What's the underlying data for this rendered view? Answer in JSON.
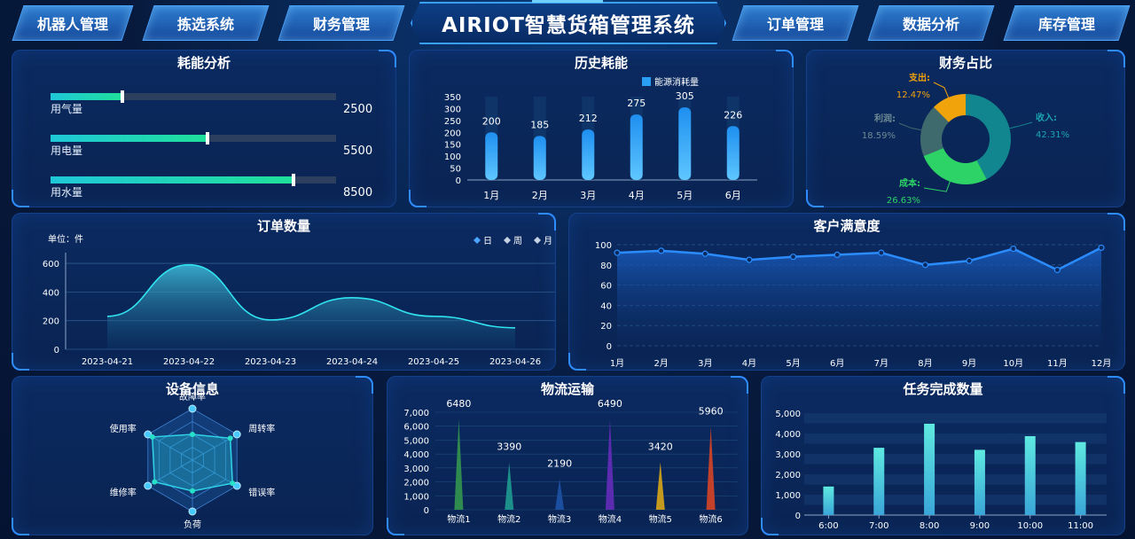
{
  "app": {
    "title": "AIRIOT智慧货箱管理系统"
  },
  "nav": {
    "left": [
      "机器人管理",
      "拣选系统",
      "财务管理"
    ],
    "right": [
      "订单管理",
      "数据分析",
      "库存管理"
    ]
  },
  "energy": {
    "title": "耗能分析",
    "items": [
      {
        "label": "用气量",
        "value": "2500",
        "fraction": 0.25
      },
      {
        "label": "用电量",
        "value": "5500",
        "fraction": 0.55
      },
      {
        "label": "用水量",
        "value": "8500",
        "fraction": 0.85
      }
    ]
  },
  "history": {
    "title": "历史耗能",
    "chart_data": {
      "type": "bar",
      "categories": [
        "1月",
        "2月",
        "3月",
        "4月",
        "5月",
        "6月"
      ],
      "series": [
        {
          "name": "能源消耗量",
          "values": [
            200,
            185,
            212,
            275,
            305,
            226
          ]
        }
      ],
      "yticks": [
        "0",
        "50",
        "100",
        "150",
        "200",
        "250",
        "300",
        "350"
      ],
      "ylim": [
        0,
        350
      ]
    }
  },
  "finance": {
    "title": "财务占比",
    "chart_data": {
      "type": "pie",
      "slices": [
        {
          "name": "收入:",
          "value": "42.31%",
          "pct": 42.31,
          "color": "#12868f"
        },
        {
          "name": "成本:",
          "value": "26.63%",
          "pct": 26.63,
          "color": "#2ed367"
        },
        {
          "name": "利润:",
          "value": "18.59%",
          "pct": 18.59,
          "color": "#3f6a6d"
        },
        {
          "name": "支出:",
          "value": "12.47%",
          "pct": 12.47,
          "color": "#f1a30c"
        }
      ]
    }
  },
  "orders": {
    "title": "订单数量",
    "unit": "单位：件",
    "legend": [
      "日",
      "周",
      "月"
    ],
    "chart_data": {
      "type": "area",
      "x": [
        "2023-04-21",
        "2023-04-22",
        "2023-04-23",
        "2023-04-24",
        "2023-04-25",
        "2023-04-26"
      ],
      "values": [
        230,
        590,
        205,
        360,
        230,
        150
      ],
      "yticks": [
        "0",
        "200",
        "400",
        "600"
      ],
      "ylim": [
        0,
        650
      ]
    }
  },
  "satisfaction": {
    "title": "客户满意度",
    "chart_data": {
      "type": "line",
      "x": [
        "1月",
        "2月",
        "3月",
        "4月",
        "5月",
        "6月",
        "7月",
        "8月",
        "9月",
        "10月",
        "11月",
        "12月"
      ],
      "values": [
        92,
        94,
        91,
        85,
        88,
        90,
        92,
        80,
        84,
        96,
        75,
        97
      ],
      "yticks": [
        "0",
        "20",
        "40",
        "60",
        "80",
        "100"
      ],
      "ylim": [
        0,
        100
      ]
    }
  },
  "device": {
    "title": "设备信息",
    "chart_data": {
      "type": "radar",
      "axes": [
        "故障率",
        "周转率",
        "错误率",
        "负荷",
        "维修率",
        "使用率"
      ],
      "values": [
        0.5,
        0.85,
        0.9,
        0.6,
        0.85,
        0.9
      ]
    }
  },
  "logistics": {
    "title": "物流运输",
    "chart_data": {
      "type": "bar",
      "categories": [
        "物流1",
        "物流2",
        "物流3",
        "物流4",
        "物流5",
        "物流6"
      ],
      "values": [
        6480,
        3390,
        2190,
        6490,
        3420,
        5960
      ],
      "labels": [
        "6480",
        "3390",
        "2190",
        "6490",
        "3420",
        "5960"
      ],
      "colors": [
        "#2e8a4f",
        "#1d8f8a",
        "#1c4ea0",
        "#5b2bb0",
        "#c49a1e",
        "#c2412b"
      ],
      "yticks": [
        "0",
        "1,000",
        "2,000",
        "3,000",
        "4,000",
        "5,000",
        "6,000",
        "7,000"
      ],
      "ylim": [
        0,
        7000
      ]
    }
  },
  "tasks": {
    "title": "任务完成数量",
    "chart_data": {
      "type": "bar",
      "categories": [
        "6:00",
        "7:00",
        "8:00",
        "9:00",
        "10:00",
        "11:00"
      ],
      "values": [
        1400,
        3300,
        4480,
        3200,
        3870,
        3580
      ],
      "yticks": [
        "0",
        "1,000",
        "2,000",
        "3,000",
        "4,000",
        "5,000"
      ],
      "ylim": [
        0,
        5000
      ]
    }
  }
}
